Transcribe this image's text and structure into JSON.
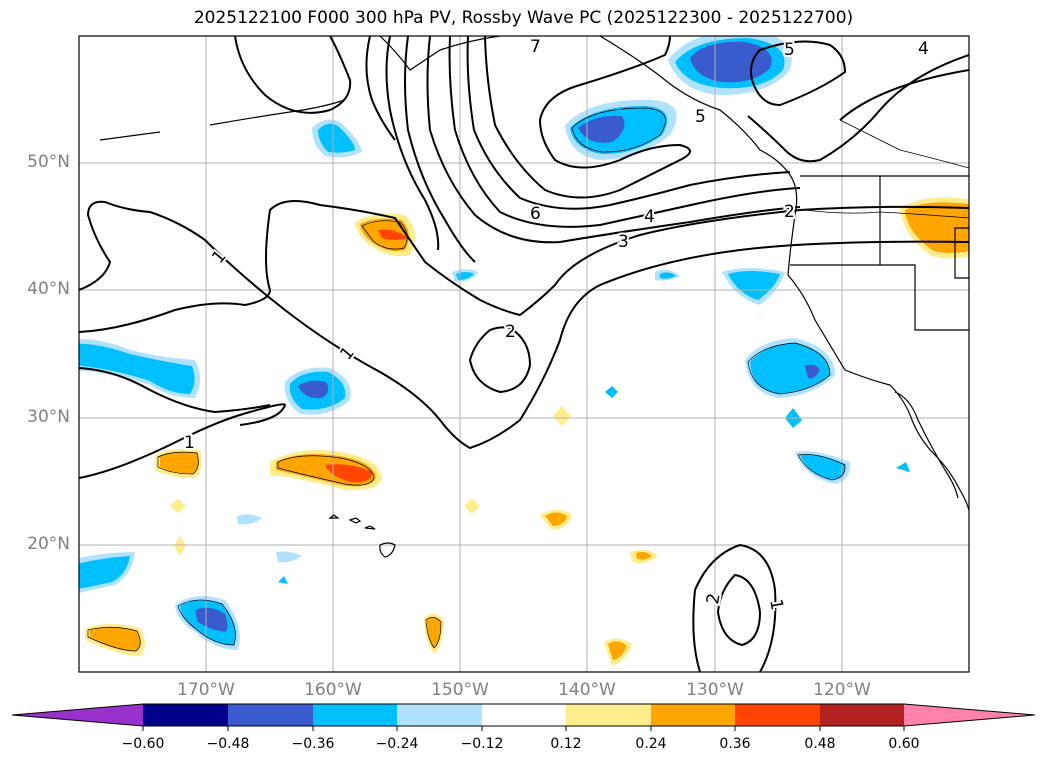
{
  "title": "2025122100 F000 300 hPa PV, Rossby Wave PC (2025122300 - 2025122700)",
  "lat_labels": [
    "50°N",
    "40°N",
    "30°N",
    "20°N"
  ],
  "lon_labels": [
    "170°W",
    "160°W",
    "150°W",
    "140°W",
    "130°W",
    "120°W"
  ],
  "contour_labels": {
    "c1a": "1",
    "c1b": "1",
    "c1c": "1",
    "c1d": "1",
    "c2a": "2",
    "c2b": "2",
    "c2c": "2",
    "c3": "3",
    "c4a": "4",
    "c4b": "4",
    "c5a": "5",
    "c5b": "5",
    "c6": "6",
    "c7": "7"
  },
  "colorbar": {
    "ticks": [
      "−0.60",
      "−0.48",
      "−0.36",
      "−0.24",
      "−0.12",
      "0.12",
      "0.24",
      "0.36",
      "0.48",
      "0.60"
    ],
    "colors": [
      "#9932cc",
      "#00008b",
      "#3a5bcd",
      "#00bfff",
      "#b0e2ff",
      "#ffffff",
      "#ffec8b",
      "#ffa500",
      "#ff4500",
      "#b22222",
      "#ff82ab"
    ]
  },
  "palette": {
    "neg1": "#b0e2ff",
    "neg2": "#00bfff",
    "neg3": "#3a5bcd",
    "pos1": "#ffec8b",
    "pos2": "#ffa500",
    "pos3": "#ff4500",
    "grid": "#b0b0b0",
    "coast": "#000000"
  }
}
